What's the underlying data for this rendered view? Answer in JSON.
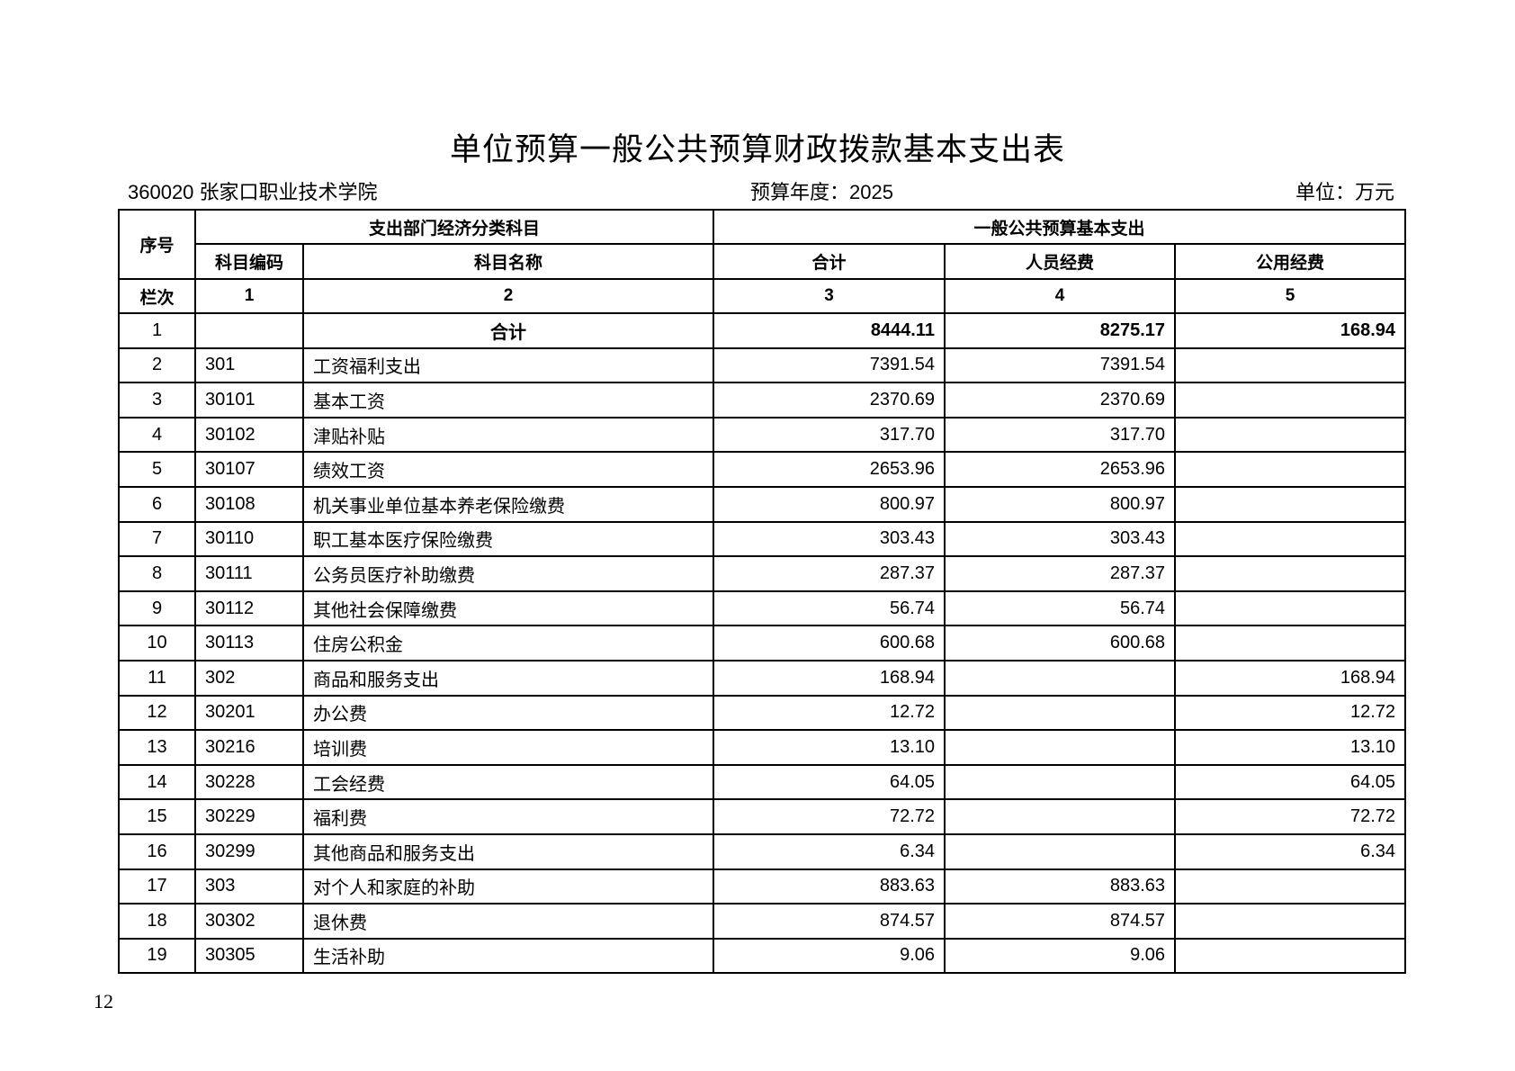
{
  "title": "单位预算一般公共预算财政拨款基本支出表",
  "unit_info": "360020 张家口职业技术学院",
  "budget_year": "预算年度：2025",
  "currency_unit": "单位：万元",
  "headers": {
    "seq": "序号",
    "group_subject": "支出部门经济分类科目",
    "group_expense": "一般公共预算基本支出",
    "code": "科目编码",
    "name": "科目名称",
    "total": "合计",
    "personnel": "人员经费",
    "public": "公用经费",
    "col_label": "栏次",
    "col_nums": [
      "1",
      "2",
      "3",
      "4",
      "5"
    ]
  },
  "rows": [
    {
      "seq": "1",
      "code": "",
      "name": "合计",
      "total": "8444.11",
      "personnel": "8275.17",
      "public": "168.94"
    },
    {
      "seq": "2",
      "code": "301",
      "name": "工资福利支出",
      "total": "7391.54",
      "personnel": "7391.54",
      "public": ""
    },
    {
      "seq": "3",
      "code": "30101",
      "name": "基本工资",
      "total": "2370.69",
      "personnel": "2370.69",
      "public": ""
    },
    {
      "seq": "4",
      "code": "30102",
      "name": "津贴补贴",
      "total": "317.70",
      "personnel": "317.70",
      "public": ""
    },
    {
      "seq": "5",
      "code": "30107",
      "name": "绩效工资",
      "total": "2653.96",
      "personnel": "2653.96",
      "public": ""
    },
    {
      "seq": "6",
      "code": "30108",
      "name": "机关事业单位基本养老保险缴费",
      "total": "800.97",
      "personnel": "800.97",
      "public": ""
    },
    {
      "seq": "7",
      "code": "30110",
      "name": "职工基本医疗保险缴费",
      "total": "303.43",
      "personnel": "303.43",
      "public": ""
    },
    {
      "seq": "8",
      "code": "30111",
      "name": "公务员医疗补助缴费",
      "total": "287.37",
      "personnel": "287.37",
      "public": ""
    },
    {
      "seq": "9",
      "code": "30112",
      "name": "其他社会保障缴费",
      "total": "56.74",
      "personnel": "56.74",
      "public": ""
    },
    {
      "seq": "10",
      "code": "30113",
      "name": "住房公积金",
      "total": "600.68",
      "personnel": "600.68",
      "public": ""
    },
    {
      "seq": "11",
      "code": "302",
      "name": "商品和服务支出",
      "total": "168.94",
      "personnel": "",
      "public": "168.94"
    },
    {
      "seq": "12",
      "code": "30201",
      "name": "办公费",
      "total": "12.72",
      "personnel": "",
      "public": "12.72"
    },
    {
      "seq": "13",
      "code": "30216",
      "name": "培训费",
      "total": "13.10",
      "personnel": "",
      "public": "13.10"
    },
    {
      "seq": "14",
      "code": "30228",
      "name": "工会经费",
      "total": "64.05",
      "personnel": "",
      "public": "64.05"
    },
    {
      "seq": "15",
      "code": "30229",
      "name": "福利费",
      "total": "72.72",
      "personnel": "",
      "public": "72.72"
    },
    {
      "seq": "16",
      "code": "30299",
      "name": "其他商品和服务支出",
      "total": "6.34",
      "personnel": "",
      "public": "6.34"
    },
    {
      "seq": "17",
      "code": "303",
      "name": "对个人和家庭的补助",
      "total": "883.63",
      "personnel": "883.63",
      "public": ""
    },
    {
      "seq": "18",
      "code": "30302",
      "name": "退休费",
      "total": "874.57",
      "personnel": "874.57",
      "public": ""
    },
    {
      "seq": "19",
      "code": "30305",
      "name": "生活补助",
      "total": "9.06",
      "personnel": "9.06",
      "public": ""
    }
  ],
  "page_number": "12"
}
